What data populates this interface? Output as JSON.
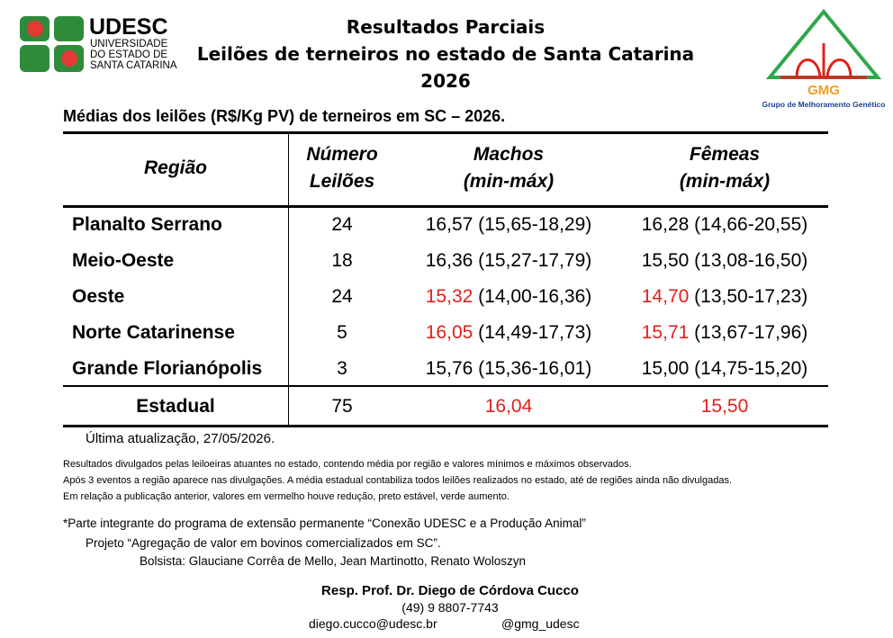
{
  "header": {
    "udesc": {
      "name": "UDESC",
      "lines": [
        "UNIVERSIDADE",
        "DO ESTADO DE",
        "SANTA CATARINA"
      ]
    },
    "title": [
      "Resultados Parciais",
      "Leilões de terneiros no estado de Santa Catarina",
      "2026"
    ],
    "gmg": {
      "name": "GMG",
      "caption": "Grupo de Melhoramento Genético"
    }
  },
  "subtitle": "Médias dos leilões (R$/Kg PV) de terneiros em SC – 2026.",
  "table": {
    "columns": [
      [
        "Região"
      ],
      [
        "Número",
        "Leilões"
      ],
      [
        "Machos",
        "(min-máx)"
      ],
      [
        "Fêmeas",
        "(min-máx)"
      ]
    ],
    "rows": [
      {
        "region": "Planalto Serrano",
        "count": "24",
        "machos": {
          "mean": "16,57",
          "range": "(15,65-18,29)",
          "color": "#000000"
        },
        "femeas": {
          "mean": "16,28",
          "range": "(14,66-20,55)",
          "color": "#000000"
        }
      },
      {
        "region": "Meio-Oeste",
        "count": "18",
        "machos": {
          "mean": "16,36",
          "range": "(15,27-17,79)",
          "color": "#000000"
        },
        "femeas": {
          "mean": "15,50",
          "range": "(13,08-16,50)",
          "color": "#000000"
        }
      },
      {
        "region": "Oeste",
        "count": "24",
        "machos": {
          "mean": "15,32",
          "range": "(14,00-16,36)",
          "color": "#e0201b"
        },
        "femeas": {
          "mean": "14,70",
          "range": "(13,50-17,23)",
          "color": "#e0201b"
        }
      },
      {
        "region": "Norte Catarinense",
        "count": "5",
        "machos": {
          "mean": "16,05",
          "range": "(14,49-17,73)",
          "color": "#e0201b"
        },
        "femeas": {
          "mean": "15,71",
          "range": "(13,67-17,96)",
          "color": "#e0201b"
        }
      },
      {
        "region": "Grande Florianópolis",
        "count": "3",
        "machos": {
          "mean": "15,76",
          "range": "(15,36-16,01)",
          "color": "#000000"
        },
        "femeas": {
          "mean": "15,00",
          "range": "(14,75-15,20)",
          "color": "#000000"
        }
      }
    ],
    "total": {
      "region": "Estadual",
      "count": "75",
      "machos": {
        "mean": "16,04",
        "color": "#e0201b"
      },
      "femeas": {
        "mean": "15,50",
        "color": "#e0201b"
      }
    }
  },
  "updated": "Última atualização, 27/05/2026.",
  "notes": [
    "Resultados divulgados pelas leiloeiras atuantes no estado, contendo média por região e valores mínimos e máximos observados.",
    "Após 3 eventos a região aparece nas divulgações. A média estadual contabiliza todos leilões realizados no estado, até de regiões ainda não divulgadas.",
    "Em relação a publicação anterior, valores em vermelho houve redução, preto estável, verde aumento."
  ],
  "credits": [
    "*Parte integrante do programa de extensão permanente “Conexão UDESC e a Produção Animal”",
    "Projeto “Agregação de valor em bovinos comercializados em SC”.",
    "Bolsista: Glauciane Corrêa de Mello, Jean Martinotto, Renato Woloszyn"
  ],
  "contact": {
    "name": "Resp. Prof. Dr. Diego de Córdova Cucco",
    "phone": "(49) 9 8807-7743",
    "email": "diego.cucco@udesc.br",
    "social": "@gmg_udesc"
  }
}
